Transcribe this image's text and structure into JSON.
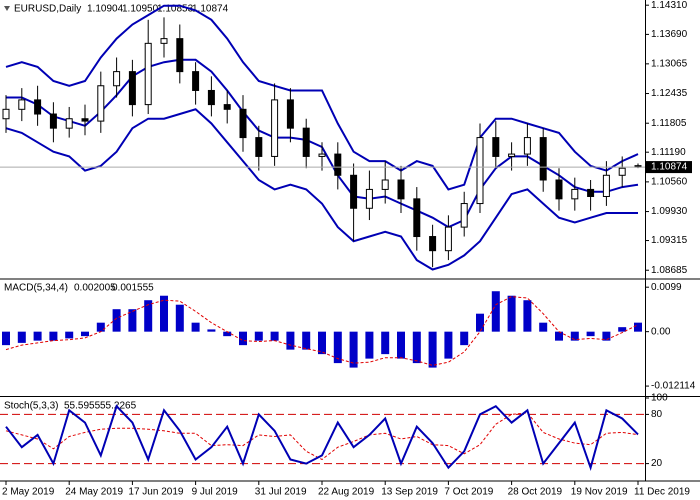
{
  "chart_data": [
    {
      "type": "candlestick",
      "title": "EURUSD,Daily",
      "last_labels": [
        "1.10904",
        "1.10950",
        "1.10853",
        "1.10874"
      ],
      "categories": [
        "2 May 2019",
        null,
        null,
        null,
        "24 May 2019",
        null,
        null,
        null,
        "17 Jun 2019",
        null,
        null,
        null,
        "9 Jul 2019",
        null,
        null,
        null,
        "31 Jul 2019",
        null,
        null,
        null,
        "22 Aug 2019",
        null,
        null,
        null,
        "13 Sep 2019",
        null,
        null,
        null,
        "7 Oct 2019",
        null,
        null,
        null,
        "28 Oct 2019",
        null,
        null,
        null,
        "19 Nov 2019",
        null,
        null,
        null,
        "11 Dec 2019"
      ],
      "open": [
        1.119,
        1.121,
        1.123,
        1.12,
        1.117,
        1.119,
        1.1185,
        1.126,
        1.129,
        1.122,
        1.135,
        1.136,
        1.129,
        1.125,
        1.122,
        1.121,
        1.115,
        1.111,
        1.123,
        1.117,
        1.111,
        1.1115,
        1.107,
        1.1,
        1.104,
        1.106,
        1.102,
        1.094,
        1.091,
        1.096,
        1.101,
        1.115,
        1.111,
        1.1115,
        1.115,
        1.106,
        1.102,
        1.104,
        1.1025,
        1.107,
        1.10904
      ],
      "high": [
        1.124,
        1.1255,
        1.126,
        1.1225,
        1.1215,
        1.122,
        1.129,
        1.132,
        1.1315,
        1.14,
        1.1405,
        1.139,
        1.131,
        1.128,
        1.125,
        1.124,
        1.1175,
        1.1265,
        1.1255,
        1.119,
        1.114,
        1.114,
        1.1095,
        1.108,
        1.11,
        1.109,
        1.1045,
        1.0965,
        1.0985,
        1.1035,
        1.118,
        1.1185,
        1.114,
        1.118,
        1.117,
        1.1085,
        1.1065,
        1.106,
        1.11,
        1.111,
        1.1095
      ],
      "low": [
        1.116,
        1.1185,
        1.1175,
        1.114,
        1.115,
        1.1155,
        1.116,
        1.1235,
        1.1195,
        1.12,
        1.132,
        1.1265,
        1.122,
        1.1195,
        1.118,
        1.112,
        1.108,
        1.109,
        1.114,
        1.1085,
        1.108,
        1.104,
        1.093,
        1.0975,
        1.101,
        1.099,
        1.091,
        1.0875,
        1.089,
        1.094,
        1.099,
        1.1085,
        1.108,
        1.109,
        1.1035,
        1.0995,
        1.0995,
        1.0995,
        1.1005,
        1.1045,
        1.10853
      ],
      "close": [
        1.121,
        1.123,
        1.12,
        1.117,
        1.119,
        1.1185,
        1.126,
        1.129,
        1.122,
        1.135,
        1.136,
        1.129,
        1.125,
        1.122,
        1.121,
        1.115,
        1.111,
        1.123,
        1.117,
        1.111,
        1.1115,
        1.107,
        1.1,
        1.104,
        1.106,
        1.102,
        1.094,
        1.091,
        1.096,
        1.101,
        1.115,
        1.111,
        1.1115,
        1.115,
        1.106,
        1.102,
        1.104,
        1.1025,
        1.107,
        1.1085,
        1.10874
      ],
      "series": [
        {
          "color": "#0000b4",
          "values": [
            1.13,
            1.131,
            1.13,
            1.127,
            1.126,
            1.127,
            1.132,
            1.136,
            1.139,
            1.141,
            1.143,
            1.143,
            1.142,
            1.14,
            1.136,
            1.131,
            1.127,
            1.126,
            1.125,
            1.125,
            1.125,
            1.118,
            1.112,
            1.11,
            1.11,
            1.108,
            1.11,
            1.109,
            1.104,
            1.105,
            1.115,
            1.119,
            1.119,
            1.118,
            1.117,
            1.116,
            1.112,
            1.109,
            1.108,
            1.11,
            1.1115
          ]
        },
        {
          "color": "#0000b4",
          "values": [
            1.1235,
            1.1235,
            1.122,
            1.1195,
            1.1185,
            1.1175,
            1.1205,
            1.124,
            1.128,
            1.13,
            1.131,
            1.1315,
            1.1315,
            1.129,
            1.125,
            1.1205,
            1.1165,
            1.115,
            1.115,
            1.1145,
            1.113,
            1.107,
            1.1025,
            1.102,
            1.1025,
            1.101,
            1.0995,
            1.098,
            1.096,
            1.0975,
            1.104,
            1.1085,
            1.111,
            1.111,
            1.109,
            1.107,
            1.1045,
            1.1035,
            1.1035,
            1.1045,
            1.105
          ]
        },
        {
          "color": "#0000b4",
          "values": [
            1.117,
            1.116,
            1.114,
            1.112,
            1.111,
            1.108,
            1.109,
            1.112,
            1.117,
            1.119,
            1.119,
            1.12,
            1.121,
            1.118,
            1.114,
            1.11,
            1.106,
            1.104,
            1.105,
            1.104,
            1.101,
            1.096,
            1.093,
            1.094,
            1.095,
            1.094,
            1.089,
            1.087,
            1.088,
            1.09,
            1.093,
            1.098,
            1.103,
            1.104,
            1.101,
            1.098,
            1.097,
            1.098,
            1.099,
            1.099,
            1.099
          ]
        }
      ],
      "ylim": [
        1.0852,
        1.1442
      ],
      "yticks": [
        {
          "value": 1.1431,
          "label": "1.14310"
        },
        {
          "value": 1.1369,
          "label": "1.13690"
        },
        {
          "value": 1.13065,
          "label": "1.13065"
        },
        {
          "value": 1.12435,
          "label": "1.12435"
        },
        {
          "value": 1.11805,
          "label": "1.11805"
        },
        {
          "value": 1.1119,
          "label": "1.11190"
        },
        {
          "value": 1.1056,
          "label": "1.10560"
        },
        {
          "value": 1.0993,
          "label": "1.09930"
        },
        {
          "value": 1.09315,
          "label": "1.09315"
        },
        {
          "value": 1.08685,
          "label": "1.08685"
        }
      ]
    },
    {
      "type": "macd",
      "title": "MACD(5,34,4)",
      "series": [
        {
          "color": "#0000c8",
          "values": [
            -0.003,
            -0.0025,
            -0.002,
            -0.002,
            -0.0015,
            -0.001,
            0.002,
            0.005,
            0.005,
            0.007,
            0.008,
            0.006,
            0.002,
            0.0005,
            -0.001,
            -0.003,
            -0.002,
            -0.002,
            -0.004,
            -0.004,
            -0.005,
            -0.007,
            -0.008,
            -0.006,
            -0.005,
            -0.006,
            -0.007,
            -0.008,
            -0.006,
            -0.003,
            0.004,
            0.009,
            0.008,
            0.007,
            0.002,
            -0.002,
            -0.002,
            -0.001,
            -0.002,
            0.001,
            0.002005
          ]
        },
        {
          "color": "#e00000",
          "values": [
            -0.004,
            -0.003,
            -0.0025,
            -0.002,
            -0.0018,
            -0.0014,
            0.0,
            0.003,
            0.0045,
            0.006,
            0.007,
            0.0068,
            0.0045,
            0.002,
            0.0,
            -0.002,
            -0.0022,
            -0.002,
            -0.003,
            -0.0038,
            -0.0045,
            -0.006,
            -0.007,
            -0.0068,
            -0.0058,
            -0.0058,
            -0.0065,
            -0.0075,
            -0.0068,
            -0.0045,
            0.0,
            0.006,
            0.0078,
            0.0075,
            0.004,
            0.0,
            -0.0018,
            -0.0015,
            -0.0018,
            -0.0002,
            0.001555
          ]
        }
      ],
      "ylim": [
        -0.0141,
        0.0115
      ],
      "yticks": [
        0.0099,
        {
          "value": 0,
          "label": "0.00"
        },
        -0.012114
      ]
    },
    {
      "type": "stochastic",
      "title": "Stoch(5,3,3)",
      "series": [
        {
          "color": "#0000b4",
          "values": [
            65,
            40,
            55,
            20,
            85,
            70,
            30,
            90,
            70,
            25,
            85,
            60,
            25,
            40,
            65,
            20,
            80,
            60,
            25,
            20,
            30,
            70,
            40,
            55,
            75,
            20,
            65,
            45,
            15,
            35,
            80,
            90,
            70,
            85,
            20,
            45,
            70,
            15,
            85,
            75,
            55.5955
          ]
        },
        {
          "color": "#e00000",
          "values": [
            60,
            55,
            50,
            38,
            53,
            58,
            62,
            63,
            63,
            62,
            60,
            57,
            57,
            42,
            43,
            42,
            55,
            53,
            55,
            35,
            25,
            40,
            47,
            55,
            57,
            50,
            53,
            43,
            42,
            32,
            43,
            68,
            80,
            82,
            58,
            50,
            45,
            43,
            57,
            58,
            55.2265
          ]
        }
      ],
      "ylim": [
        0,
        100
      ],
      "yticks": [
        100,
        80,
        20
      ]
    }
  ]
}
